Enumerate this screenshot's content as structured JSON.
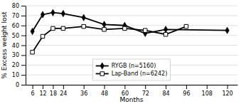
{
  "chart_data": {
    "type": "line",
    "xlabel": "Months",
    "ylabel": "% Excess weight lost",
    "series": [
      {
        "name": "RYGB (n=5160)",
        "color": "#000000",
        "marker": "diamond",
        "x": [
          6,
          12,
          18,
          24,
          36,
          48,
          60,
          72,
          84,
          120
        ],
        "values": [
          54,
          71,
          73,
          72,
          68,
          61,
          60,
          52,
          56,
          55
        ]
      },
      {
        "name": "Lap-Band (n=6242)",
        "color": "#000000",
        "marker": "square-open",
        "x": [
          6,
          12,
          18,
          24,
          36,
          48,
          60,
          72,
          84,
          96
        ],
        "values": [
          33,
          49,
          57,
          57,
          59,
          56,
          57,
          55,
          51,
          59
        ]
      }
    ],
    "xlim": [
      2,
      126
    ],
    "xticks": [
      6,
      12,
      18,
      24,
      36,
      48,
      60,
      72,
      84,
      96,
      108,
      120
    ],
    "ylim": [
      0,
      80
    ],
    "yticks": [
      0,
      10,
      20,
      30,
      40,
      50,
      60,
      70,
      80
    ],
    "grid": true,
    "legend": "lower center"
  }
}
